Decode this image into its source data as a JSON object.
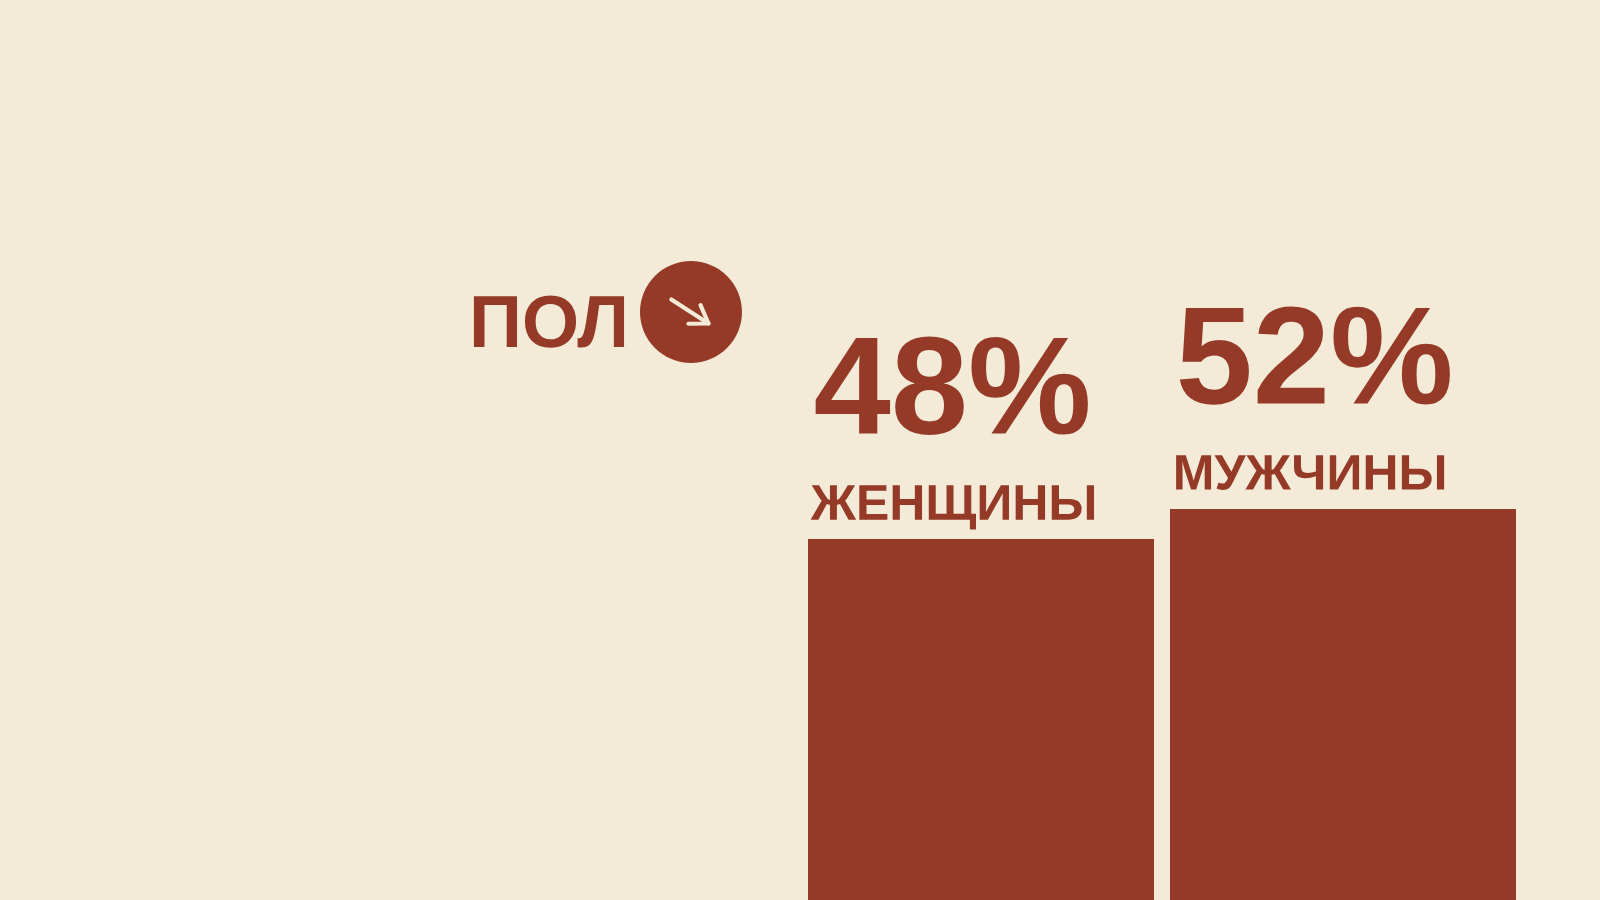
{
  "chart_data": {
    "type": "bar",
    "title": "ПОЛ",
    "categories": [
      "ЖЕНЩИНЫ",
      "МУЖЧИНЫ"
    ],
    "values": [
      48,
      52
    ],
    "value_labels": [
      "48%",
      "52%"
    ],
    "color": "#963a28",
    "tick_labels": "x"
  }
}
